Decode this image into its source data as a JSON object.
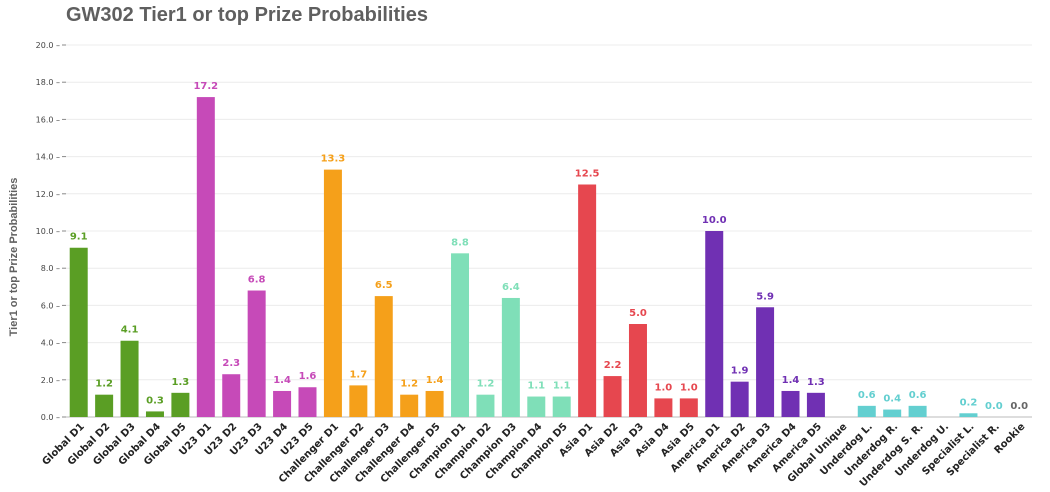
{
  "chart_data": {
    "type": "bar",
    "title": "GW302 Tier1 or top Prize Probabilities",
    "xlabel": "",
    "ylabel": "Tier1 or top Prize Probabilities",
    "ylim": [
      0,
      20
    ],
    "yticks": [
      "0.0",
      "2.0",
      "4.0",
      "6.0",
      "8.0",
      "10.0",
      "12.0",
      "14.0",
      "16.0",
      "18.0",
      "20.0"
    ],
    "grid": true,
    "categories": [
      "Global D1",
      "Global D2",
      "Global D3",
      "Global D4",
      "Global D5",
      "U23 D1",
      "U23 D2",
      "U23 D3",
      "U23 D4",
      "U23 D5",
      "Challenger D1",
      "Challenger D2",
      "Challenger D3",
      "Challenger D4",
      "Challenger D5",
      "Champion D1",
      "Champion D2",
      "Champion D3",
      "Champion D4",
      "Champion D5",
      "Asia D1",
      "Asia D2",
      "Asia D3",
      "Asia D4",
      "Asia D5",
      "America D1",
      "America D2",
      "America D3",
      "America D4",
      "America D5",
      "Global Unique",
      "Underdog L.",
      "Underdog R.",
      "Underdog S. R.",
      "Underdog U.",
      "Specialist L.",
      "Specialist R.",
      "Rookie"
    ],
    "values": [
      9.1,
      1.2,
      4.1,
      0.3,
      1.3,
      17.2,
      2.3,
      6.8,
      1.4,
      1.6,
      13.3,
      1.7,
      6.5,
      1.2,
      1.4,
      8.8,
      1.2,
      6.4,
      1.1,
      1.1,
      12.5,
      2.2,
      5.0,
      1.0,
      1.0,
      10.0,
      1.9,
      5.9,
      1.4,
      1.3,
      null,
      0.6,
      0.4,
      0.6,
      null,
      0.2,
      0.0,
      0.0
    ],
    "value_labels": [
      "9.1",
      "1.2",
      "4.1",
      "0.3",
      "1.3",
      "17.2",
      "2.3",
      "6.8",
      "1.4",
      "1.6",
      "13.3",
      "1.7",
      "6.5",
      "1.2",
      "1.4",
      "8.8",
      "1.2",
      "6.4",
      "1.1",
      "1.1",
      "12.5",
      "2.2",
      "5.0",
      "1.0",
      "1.0",
      "10.0",
      "1.9",
      "5.9",
      "1.4",
      "1.3",
      "",
      "0.6",
      "0.4",
      "0.6",
      "",
      "0.2",
      "0.0",
      "0.0"
    ],
    "bar_colors": [
      "#5a9e24",
      "#5a9e24",
      "#5a9e24",
      "#5a9e24",
      "#5a9e24",
      "#c64ab8",
      "#c64ab8",
      "#c64ab8",
      "#c64ab8",
      "#c64ab8",
      "#f5a01a",
      "#f5a01a",
      "#f5a01a",
      "#f5a01a",
      "#f5a01a",
      "#7fdfb8",
      "#7fdfb8",
      "#7fdfb8",
      "#7fdfb8",
      "#7fdfb8",
      "#e6474f",
      "#e6474f",
      "#e6474f",
      "#e6474f",
      "#e6474f",
      "#7030b3",
      "#7030b3",
      "#7030b3",
      "#7030b3",
      "#7030b3",
      "#63cfd0",
      "#63cfd0",
      "#63cfd0",
      "#63cfd0",
      "#63cfd0",
      "#63cfd0",
      "#63cfd0",
      "#666666"
    ]
  }
}
